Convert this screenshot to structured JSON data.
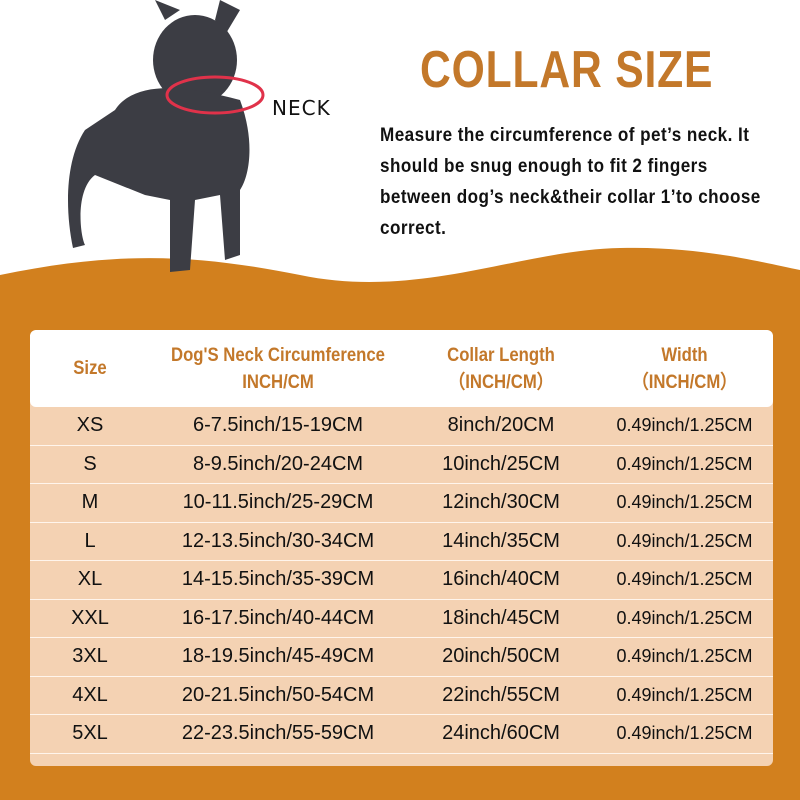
{
  "colors": {
    "accent": "#c3782a",
    "background_band": "#d2801e",
    "row_bg": "#f4d2b3"
  },
  "image": {
    "neck_label": "NECK"
  },
  "title": "COLLAR SIZE",
  "description": "Measure the circumference of pet’s neck. It should be snug enough to fit 2 fingers between dog’s neck&their collar 1’to choose correct.",
  "table": {
    "headers": [
      {
        "line1": "Size",
        "line2": ""
      },
      {
        "line1": "Dog'S Neck Circumference",
        "line2": "INCH/CM"
      },
      {
        "line1": "Collar Length",
        "line2": "（INCH/CM）"
      },
      {
        "line1": "Width",
        "line2": "（INCH/CM）"
      }
    ],
    "rows": [
      [
        "XS",
        "6-7.5inch/15-19CM",
        "8inch/20CM",
        "0.49inch/1.25CM"
      ],
      [
        "S",
        "8-9.5inch/20-24CM",
        "10inch/25CM",
        "0.49inch/1.25CM"
      ],
      [
        "M",
        "10-11.5inch/25-29CM",
        "12inch/30CM",
        "0.49inch/1.25CM"
      ],
      [
        "L",
        "12-13.5inch/30-34CM",
        "14inch/35CM",
        "0.49inch/1.25CM"
      ],
      [
        "XL",
        "14-15.5inch/35-39CM",
        "16inch/40CM",
        "0.49inch/1.25CM"
      ],
      [
        "XXL",
        "16-17.5inch/40-44CM",
        "18inch/45CM",
        "0.49inch/1.25CM"
      ],
      [
        "3XL",
        "18-19.5inch/45-49CM",
        "20inch/50CM",
        "0.49inch/1.25CM"
      ],
      [
        "4XL",
        "20-21.5inch/50-54CM",
        "22inch/55CM",
        "0.49inch/1.25CM"
      ],
      [
        "5XL",
        "22-23.5inch/55-59CM",
        "24inch/60CM",
        "0.49inch/1.25CM"
      ]
    ]
  }
}
